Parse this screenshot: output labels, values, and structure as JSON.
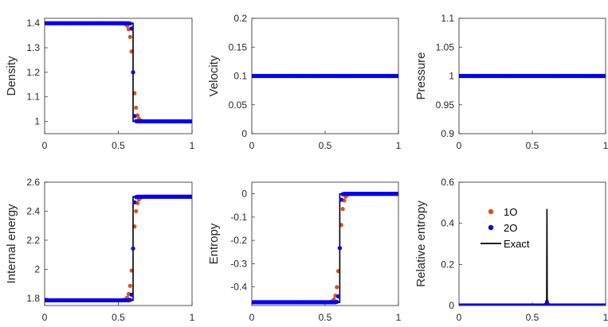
{
  "figure": {
    "colors": {
      "first_order": "#D95319",
      "second_order": "#0000FF",
      "exact": "#000000",
      "axis": "#262626"
    }
  },
  "chart_data": [
    {
      "type": "line",
      "title": "",
      "xlabel": "",
      "ylabel": "Density",
      "xlim": [
        0,
        1
      ],
      "ylim": [
        0.95,
        1.42
      ],
      "xticks": [
        {
          "v": 0,
          "label": "0"
        },
        {
          "v": 0.5,
          "label": "0.5"
        },
        {
          "v": 1,
          "label": "1"
        }
      ],
      "yticks": [
        {
          "v": 1,
          "label": "1"
        },
        {
          "v": 1.1,
          "label": "1.1"
        },
        {
          "v": 1.2,
          "label": "1.2"
        },
        {
          "v": 1.3,
          "label": "1.3"
        },
        {
          "v": 1.4,
          "label": "1.4"
        }
      ],
      "profile": {
        "kind": "step",
        "left": 1.4,
        "right": 1.0,
        "x0": 0.6,
        "w1": 0.022,
        "w2": 0.007
      },
      "series": [
        {
          "name": "1O",
          "style": "markers"
        },
        {
          "name": "2O",
          "style": "markers"
        },
        {
          "name": "Exact",
          "style": "line"
        }
      ]
    },
    {
      "type": "line",
      "title": "",
      "xlabel": "",
      "ylabel": "Velocity",
      "xlim": [
        0,
        1
      ],
      "ylim": [
        0,
        0.2
      ],
      "xticks": [
        {
          "v": 0,
          "label": "0"
        },
        {
          "v": 0.5,
          "label": "0.5"
        },
        {
          "v": 1,
          "label": "1"
        }
      ],
      "yticks": [
        {
          "v": 0,
          "label": "0"
        },
        {
          "v": 0.05,
          "label": "0.05"
        },
        {
          "v": 0.1,
          "label": "0.1"
        },
        {
          "v": 0.15,
          "label": "0.15"
        },
        {
          "v": 0.2,
          "label": "0.2"
        }
      ],
      "profile": {
        "kind": "const",
        "value": 0.1
      },
      "series": [
        {
          "name": "1O",
          "style": "markers"
        },
        {
          "name": "2O",
          "style": "markers"
        },
        {
          "name": "Exact",
          "style": "line"
        }
      ]
    },
    {
      "type": "line",
      "title": "",
      "xlabel": "",
      "ylabel": "Pressure",
      "xlim": [
        0,
        1
      ],
      "ylim": [
        0.9,
        1.1
      ],
      "xticks": [
        {
          "v": 0,
          "label": "0"
        },
        {
          "v": 0.5,
          "label": "0.5"
        },
        {
          "v": 1,
          "label": "1"
        }
      ],
      "yticks": [
        {
          "v": 0.9,
          "label": "0.9"
        },
        {
          "v": 0.95,
          "label": "0.95"
        },
        {
          "v": 1,
          "label": "1"
        },
        {
          "v": 1.05,
          "label": "1.05"
        },
        {
          "v": 1.1,
          "label": "1.1"
        }
      ],
      "profile": {
        "kind": "const",
        "value": 1.0
      },
      "series": [
        {
          "name": "1O",
          "style": "markers"
        },
        {
          "name": "2O",
          "style": "markers"
        },
        {
          "name": "Exact",
          "style": "line"
        }
      ]
    },
    {
      "type": "line",
      "title": "",
      "xlabel": "",
      "ylabel": "Internal energy",
      "xlim": [
        0,
        1
      ],
      "ylim": [
        1.75,
        2.6
      ],
      "xticks": [
        {
          "v": 0,
          "label": "0"
        },
        {
          "v": 0.5,
          "label": "0.5"
        },
        {
          "v": 1,
          "label": "1"
        }
      ],
      "yticks": [
        {
          "v": 1.8,
          "label": "1.8"
        },
        {
          "v": 2,
          "label": "2"
        },
        {
          "v": 2.2,
          "label": "2.2"
        },
        {
          "v": 2.4,
          "label": "2.4"
        },
        {
          "v": 2.6,
          "label": "2.6"
        }
      ],
      "profile": {
        "kind": "step",
        "left": 1.786,
        "right": 2.5,
        "x0": 0.6,
        "w1": 0.022,
        "w2": 0.007
      },
      "series": [
        {
          "name": "1O",
          "style": "markers"
        },
        {
          "name": "2O",
          "style": "markers"
        },
        {
          "name": "Exact",
          "style": "line"
        }
      ]
    },
    {
      "type": "line",
      "title": "",
      "xlabel": "",
      "ylabel": "Entropy",
      "xlim": [
        0,
        1
      ],
      "ylim": [
        -0.48,
        0.05
      ],
      "xticks": [
        {
          "v": 0,
          "label": "0"
        },
        {
          "v": 0.5,
          "label": "0.5"
        },
        {
          "v": 1,
          "label": "1"
        }
      ],
      "yticks": [
        {
          "v": -0.4,
          "label": "-0.4"
        },
        {
          "v": -0.3,
          "label": "-0.3"
        },
        {
          "v": -0.2,
          "label": "-0.2"
        },
        {
          "v": -0.1,
          "label": "-0.1"
        },
        {
          "v": 0,
          "label": "0"
        }
      ],
      "profile": {
        "kind": "step",
        "left": -0.466,
        "right": 0.0,
        "x0": 0.6,
        "w1": 0.022,
        "w2": 0.007
      },
      "series": [
        {
          "name": "1O",
          "style": "markers"
        },
        {
          "name": "2O",
          "style": "markers"
        },
        {
          "name": "Exact",
          "style": "line"
        }
      ]
    },
    {
      "type": "line",
      "title": "",
      "xlabel": "",
      "ylabel": "Relative entropy",
      "xlim": [
        0,
        1
      ],
      "ylim": [
        0,
        0.6
      ],
      "xticks": [
        {
          "v": 0,
          "label": "0"
        },
        {
          "v": 0.5,
          "label": "0.5"
        },
        {
          "v": 1,
          "label": "1"
        }
      ],
      "yticks": [
        {
          "v": 0,
          "label": "0"
        },
        {
          "v": 0.2,
          "label": "0.2"
        },
        {
          "v": 0.4,
          "label": "0.4"
        },
        {
          "v": 0.6,
          "label": "0.6"
        }
      ],
      "profile": {
        "kind": "spike",
        "x0": 0.6,
        "peak": 0.47,
        "m1": 0.02,
        "m2": 0.012
      },
      "legend": {
        "position": "upper-left",
        "entries": [
          "1O",
          "2O",
          "Exact"
        ]
      },
      "series": [
        {
          "name": "1O",
          "style": "markers"
        },
        {
          "name": "2O",
          "style": "markers"
        },
        {
          "name": "Exact",
          "style": "line"
        }
      ]
    }
  ]
}
